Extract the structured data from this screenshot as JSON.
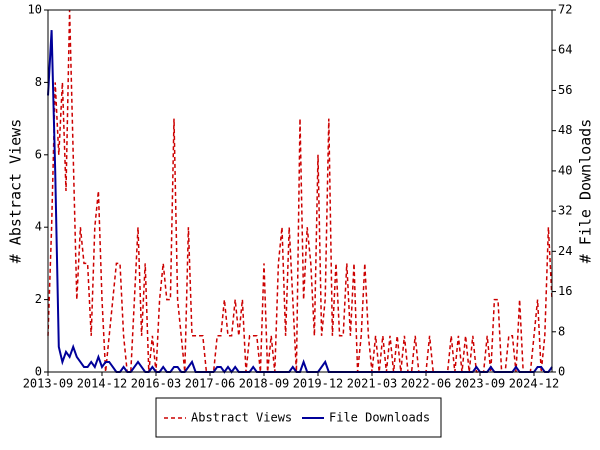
{
  "chart_data": {
    "type": "line",
    "x": [
      "2013-09",
      "2013-10",
      "2013-11",
      "2013-12",
      "2014-01",
      "2014-02",
      "2014-03",
      "2014-04",
      "2014-05",
      "2014-06",
      "2014-07",
      "2014-08",
      "2014-09",
      "2014-10",
      "2014-11",
      "2014-12",
      "2015-01",
      "2015-02",
      "2015-03",
      "2015-04",
      "2015-05",
      "2015-06",
      "2015-07",
      "2015-08",
      "2015-09",
      "2015-10",
      "2015-11",
      "2015-12",
      "2016-01",
      "2016-02",
      "2016-03",
      "2016-04",
      "2016-05",
      "2016-06",
      "2016-07",
      "2016-08",
      "2016-09",
      "2016-10",
      "2016-11",
      "2016-12",
      "2017-01",
      "2017-02",
      "2017-03",
      "2017-04",
      "2017-05",
      "2017-06",
      "2017-07",
      "2017-08",
      "2017-09",
      "2017-10",
      "2017-11",
      "2017-12",
      "2018-01",
      "2018-02",
      "2018-03",
      "2018-04",
      "2018-05",
      "2018-06",
      "2018-07",
      "2018-08",
      "2018-09",
      "2018-10",
      "2018-11",
      "2018-12",
      "2019-01",
      "2019-02",
      "2019-03",
      "2019-04",
      "2019-05",
      "2019-06",
      "2019-07",
      "2019-08",
      "2019-09",
      "2019-10",
      "2019-11",
      "2019-12",
      "2020-01",
      "2020-02",
      "2020-03",
      "2020-04",
      "2020-05",
      "2020-06",
      "2020-07",
      "2020-08",
      "2020-09",
      "2020-10",
      "2020-11",
      "2020-12",
      "2021-01",
      "2021-02",
      "2021-03",
      "2021-04",
      "2021-05",
      "2021-06",
      "2021-07",
      "2021-08",
      "2021-09",
      "2021-10",
      "2021-11",
      "2021-12",
      "2022-01",
      "2022-02",
      "2022-03",
      "2022-04",
      "2022-05",
      "2022-06",
      "2022-07",
      "2022-08",
      "2022-09",
      "2022-10",
      "2022-11",
      "2022-12",
      "2023-01",
      "2023-02",
      "2023-03",
      "2023-04",
      "2023-05",
      "2023-06",
      "2023-07",
      "2023-08",
      "2023-09",
      "2023-10",
      "2023-11",
      "2023-12",
      "2024-01",
      "2024-02",
      "2024-03",
      "2024-04",
      "2024-05",
      "2024-06",
      "2024-07",
      "2024-08",
      "2024-09",
      "2024-10",
      "2024-11",
      "2024-12",
      "2025-01",
      "2025-02",
      "2025-03",
      "2025-04",
      "2025-05"
    ],
    "xticks": [
      "2013-09",
      "2014-12",
      "2016-03",
      "2017-06",
      "2018-09",
      "2019-12",
      "2021-03",
      "2022-06",
      "2023-09",
      "2024-12"
    ],
    "series": [
      {
        "name": "Abstract Views",
        "color": "#cc0000",
        "dash": true,
        "values": [
          1,
          4,
          8,
          6,
          8,
          5,
          10,
          6,
          2,
          4,
          3,
          3,
          1,
          4,
          5,
          2,
          0,
          1,
          2,
          3,
          3,
          1,
          0,
          0,
          2,
          4,
          1,
          3,
          0,
          1,
          0,
          2,
          3,
          2,
          2,
          7,
          2,
          1,
          0,
          4,
          1,
          1,
          1,
          1,
          0,
          0,
          0,
          1,
          1,
          2,
          1,
          1,
          2,
          1,
          2,
          0,
          1,
          1,
          1,
          0,
          3,
          0,
          1,
          0,
          3,
          4,
          1,
          4,
          2,
          0,
          7,
          2,
          4,
          3,
          1,
          6,
          1,
          2,
          7,
          1,
          3,
          1,
          1,
          3,
          1,
          3,
          0,
          1,
          3,
          1,
          0,
          1,
          0,
          1,
          0,
          1,
          0,
          1,
          0,
          1,
          0,
          0,
          1,
          0,
          0,
          0,
          1,
          0,
          0,
          0,
          0,
          0,
          1,
          0,
          1,
          0,
          1,
          0,
          1,
          0,
          0,
          0,
          1,
          0,
          2,
          2,
          0,
          0,
          1,
          1,
          0,
          2,
          0,
          0,
          0,
          1,
          2,
          0,
          1,
          4,
          2
        ]
      },
      {
        "name": "File Downloads",
        "color": "#000099",
        "dash": false,
        "axis": "y2",
        "values": [
          55,
          68,
          40,
          5,
          2,
          4,
          3,
          5,
          3,
          2,
          1,
          1,
          2,
          1,
          3,
          1,
          2,
          2,
          1,
          0,
          0,
          1,
          0,
          0,
          1,
          2,
          1,
          0,
          0,
          1,
          0,
          0,
          1,
          0,
          0,
          1,
          1,
          0,
          0,
          1,
          2,
          0,
          0,
          0,
          0,
          0,
          0,
          1,
          1,
          0,
          1,
          0,
          1,
          0,
          0,
          0,
          0,
          1,
          0,
          0,
          0,
          0,
          0,
          0,
          0,
          0,
          0,
          0,
          1,
          0,
          0,
          2,
          0,
          0,
          0,
          0,
          1,
          2,
          0,
          0,
          0,
          0,
          0,
          0,
          0,
          0,
          0,
          0,
          0,
          0,
          0,
          0,
          0,
          0,
          0,
          0,
          0,
          0,
          0,
          0,
          0,
          0,
          0,
          0,
          0,
          0,
          0,
          0,
          0,
          0,
          0,
          0,
          0,
          0,
          0,
          0,
          0,
          0,
          0,
          1,
          0,
          0,
          0,
          1,
          0,
          0,
          0,
          0,
          0,
          0,
          1,
          0,
          0,
          0,
          0,
          0,
          1,
          1,
          0,
          0,
          1
        ]
      }
    ],
    "ylabel": "# Abstract Views",
    "y2label": "# File Downloads",
    "ylim": [
      0,
      10
    ],
    "yticks": [
      0,
      2,
      4,
      6,
      8,
      10
    ],
    "y2lim": [
      0,
      72
    ],
    "y2ticks": [
      0,
      8,
      16,
      24,
      32,
      40,
      48,
      56,
      64,
      72
    ],
    "legend": "bottom"
  }
}
